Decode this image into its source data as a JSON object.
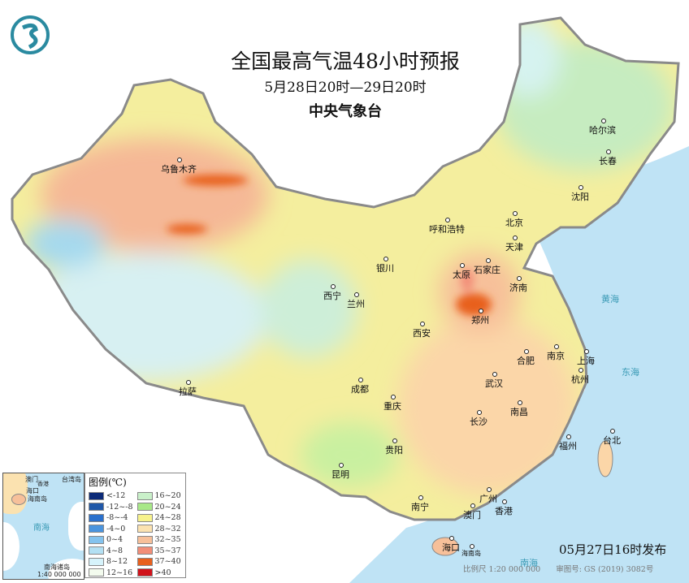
{
  "header": {
    "title": "全国最高气温48小时预报",
    "period": "5月28日20时—29日20时",
    "agency": "中央气象台",
    "logo_icon": "cma-logo-icon"
  },
  "cities": [
    "乌鲁木齐",
    "哈尔滨",
    "长春",
    "沈阳",
    "北京",
    "呼和浩特",
    "天津",
    "石家庄",
    "太原",
    "银川",
    "济南",
    "西宁",
    "兰州",
    "郑州",
    "西安",
    "合肥",
    "南京",
    "上海",
    "杭州",
    "武汉",
    "成都",
    "重庆",
    "拉萨",
    "长沙",
    "南昌",
    "福州",
    "台北",
    "贵阳",
    "昆明",
    "广州",
    "南宁",
    "澳门",
    "香港",
    "海口"
  ],
  "seas": {
    "huanghai": "黄海",
    "donghai": "东海",
    "nanhai": "南海",
    "hainan_island": "海南岛"
  },
  "legend": {
    "title": "图例(℃)",
    "items": [
      {
        "label": "<-12",
        "color": "#0b2a78"
      },
      {
        "label": "-12~-8",
        "color": "#1f57a8"
      },
      {
        "label": "-8~-4",
        "color": "#2a70cc"
      },
      {
        "label": "-4~0",
        "color": "#4a94de"
      },
      {
        "label": "0~4",
        "color": "#84c3ee"
      },
      {
        "label": "4~8",
        "color": "#b3e0f3"
      },
      {
        "label": "8~12",
        "color": "#d6f3fb"
      },
      {
        "label": "12~16",
        "color": "#f3fbee"
      },
      {
        "label": "16~20",
        "color": "#c9f0c9"
      },
      {
        "label": "20~24",
        "color": "#a8e888"
      },
      {
        "label": "24~28",
        "color": "#f7f28c"
      },
      {
        "label": "28~32",
        "color": "#fbe2b0"
      },
      {
        "label": "32~35",
        "color": "#f7c09a"
      },
      {
        "label": "35~37",
        "color": "#f28e78"
      },
      {
        "label": "37~40",
        "color": "#e8601e"
      },
      {
        "label": ">40",
        "color": "#d0121a"
      }
    ]
  },
  "inset": {
    "labels": [
      "澳门",
      "香港",
      "台湾岛",
      "海口",
      "海南岛",
      "南海",
      "南海诸岛"
    ],
    "scale": "1:40 000 000"
  },
  "issued": "05月27日16时发布",
  "footer": {
    "scale": "比例尺 1:20 000 000",
    "map_number": "审图号: GS (2019) 3082号"
  }
}
